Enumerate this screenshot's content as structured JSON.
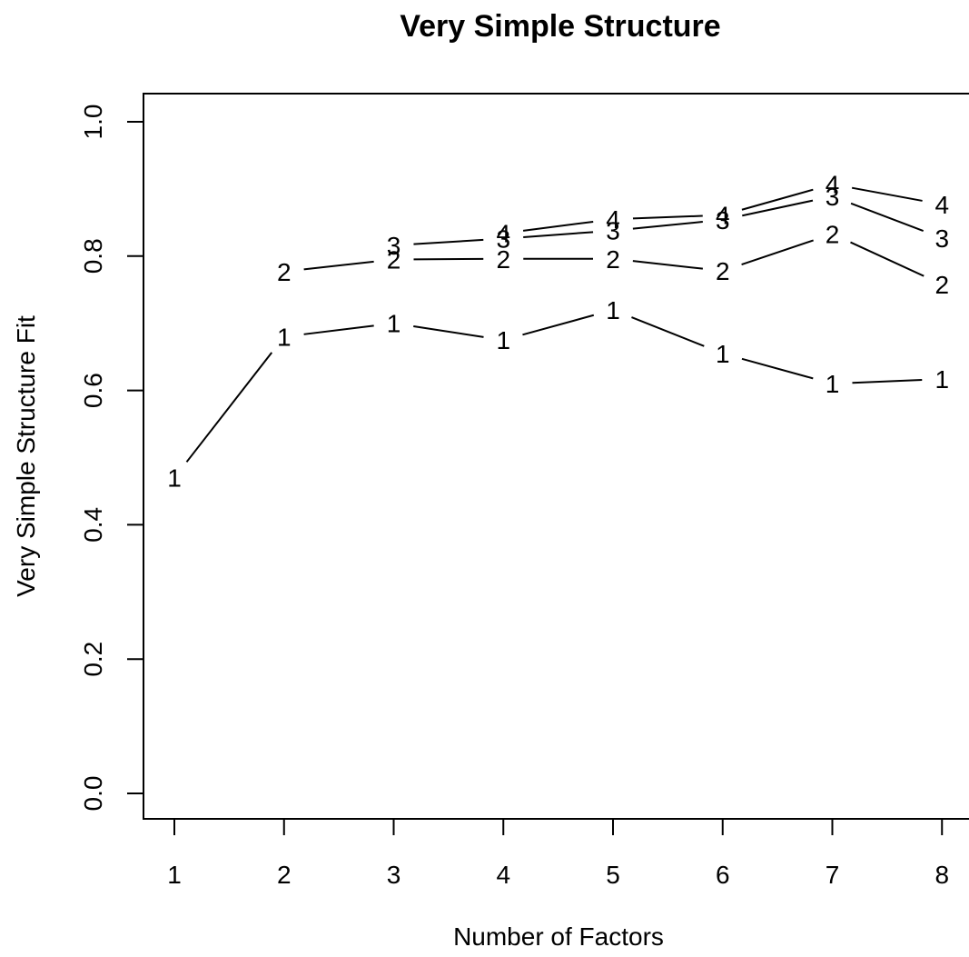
{
  "chart_data": {
    "type": "line",
    "title": "Very Simple Structure",
    "xlabel": "Number of Factors",
    "ylabel": "Very Simple Structure Fit",
    "x": [
      1,
      2,
      3,
      4,
      5,
      6,
      7,
      8
    ],
    "x_ticks": [
      "1",
      "2",
      "3",
      "4",
      "5",
      "6",
      "7",
      "8"
    ],
    "y_ticks": [
      "0.0",
      "0.2",
      "0.4",
      "0.6",
      "0.8",
      "1.0"
    ],
    "ylim": [
      0,
      1
    ],
    "grid": false,
    "marker": "series label digit",
    "series": [
      {
        "name": "1",
        "values": [
          0.47,
          0.68,
          0.7,
          0.675,
          0.72,
          0.655,
          0.61,
          0.617
        ]
      },
      {
        "name": "2",
        "values": [
          null,
          0.777,
          0.795,
          0.796,
          0.796,
          0.778,
          0.833,
          0.758
        ]
      },
      {
        "name": "3",
        "values": [
          null,
          null,
          0.816,
          0.826,
          0.838,
          0.854,
          0.889,
          0.827
        ]
      },
      {
        "name": "4",
        "values": [
          null,
          null,
          null,
          0.834,
          0.855,
          0.861,
          0.907,
          0.877
        ]
      }
    ]
  }
}
